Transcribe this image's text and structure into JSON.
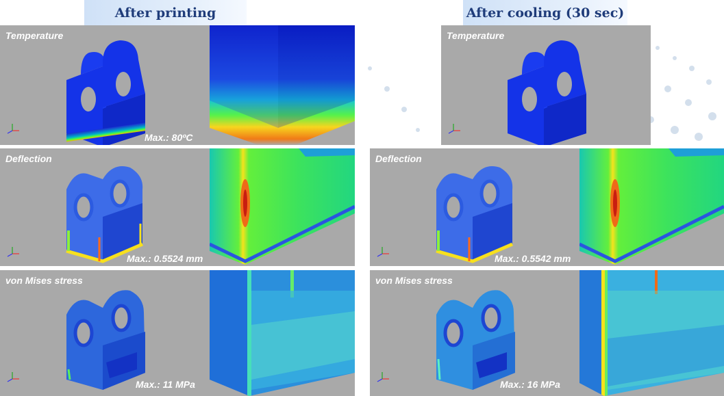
{
  "headers": {
    "left": "After printing",
    "right": "After cooling (30 sec)"
  },
  "after_printing": {
    "temperature": {
      "label": "Temperature",
      "max": "Max.: 80ºC"
    },
    "deflection": {
      "label": "Deflection",
      "max": "Max.: 0.5524 mm"
    },
    "stress": {
      "label": "von Mises stress",
      "max": "Max.: 11 MPa"
    }
  },
  "after_cooling": {
    "temperature": {
      "label": "Temperature"
    },
    "deflection": {
      "label": "Deflection",
      "max": "Max.: 0.5542 mm"
    },
    "stress": {
      "label": "von Mises stress",
      "max": "Max.: 16 MPa"
    }
  }
}
